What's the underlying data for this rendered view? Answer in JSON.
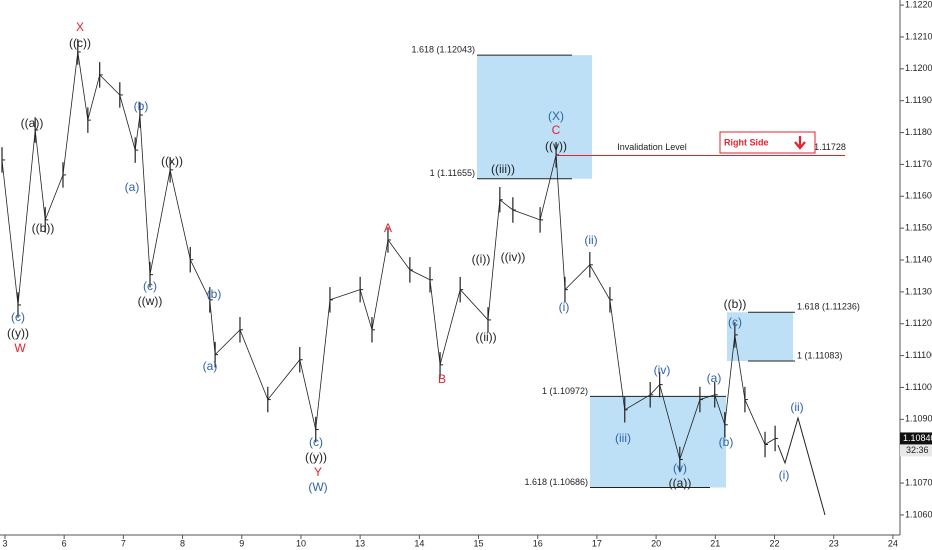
{
  "chart_data": {
    "type": "ohlc",
    "xlim": [
      -0.084,
      15.12
    ],
    "xticks": [
      {
        "value": 0,
        "label": "3"
      },
      {
        "value": 1,
        "label": "6"
      },
      {
        "value": 2,
        "label": "7"
      },
      {
        "value": 3,
        "label": "8"
      },
      {
        "value": 4,
        "label": "9"
      },
      {
        "value": 5,
        "label": "10"
      },
      {
        "value": 6,
        "label": "13"
      },
      {
        "value": 7,
        "label": "14"
      },
      {
        "value": 8,
        "label": "15"
      },
      {
        "value": 9,
        "label": "16"
      },
      {
        "value": 10,
        "label": "17"
      },
      {
        "value": 11,
        "label": "20"
      },
      {
        "value": 12,
        "label": "21"
      },
      {
        "value": 13,
        "label": "22"
      },
      {
        "value": 14,
        "label": "23"
      },
      {
        "value": 15,
        "label": "24"
      }
    ],
    "ylim": [
      1.10537,
      1.12216
    ],
    "yticks": [
      {
        "value": 1.106,
        "label": "1.10600"
      },
      {
        "value": 1.107,
        "label": "1.10700"
      },
      {
        "value": 1.108,
        "label": "1.10800"
      },
      {
        "value": 1.109,
        "label": "1.10900"
      },
      {
        "value": 1.11,
        "label": "1.11000"
      },
      {
        "value": 1.111,
        "label": "1.11100"
      },
      {
        "value": 1.112,
        "label": "1.11200"
      },
      {
        "value": 1.113,
        "label": "1.11300"
      },
      {
        "value": 1.114,
        "label": "1.11400"
      },
      {
        "value": 1.115,
        "label": "1.11500"
      },
      {
        "value": 1.116,
        "label": "1.11600"
      },
      {
        "value": 1.117,
        "label": "1.11700"
      },
      {
        "value": 1.118,
        "label": "1.11800"
      },
      {
        "value": 1.119,
        "label": "1.11900"
      },
      {
        "value": 1.12,
        "label": "1.12000"
      },
      {
        "value": 1.121,
        "label": "1.12100"
      },
      {
        "value": 1.122,
        "label": "1.12200"
      }
    ],
    "color": "#222222",
    "x": [
      -0.05,
      0.22,
      0.51,
      0.68,
      0.98,
      1.23,
      1.4,
      1.6,
      1.94,
      2.2,
      2.28,
      2.45,
      2.79,
      3.13,
      3.46,
      3.55,
      3.97,
      4.44,
      4.98,
      5.25,
      5.49,
      6,
      6.2,
      6.47,
      6.84,
      7.18,
      7.35,
      7.69,
      8.16,
      8.36,
      8.58,
      9.04,
      9.31,
      9.46,
      9.88,
      10.22,
      10.47,
      10.9,
      11.06,
      11.4,
      11.74,
      11.99,
      12.16,
      12.33,
      12.5,
      12.84,
      13.01
    ],
    "high": [
      1.11754,
      1.11299,
      1.11848,
      1.11566,
      1.11707,
      1.12093,
      1.11879,
      1.12021,
      1.11958,
      1.11785,
      1.11895,
      1.11394,
      1.11723,
      1.11441,
      1.11315,
      1.11143,
      1.11221,
      1.11002,
      1.11127,
      1.10908,
      1.11315,
      1.11347,
      1.11221,
      1.11503,
      1.11409,
      1.11378,
      1.11111,
      1.11347,
      1.11252,
      1.11629,
      1.11597,
      1.11566,
      1.1177,
      1.11347,
      1.11425,
      1.11315,
      1.1097,
      1.11017,
      1.11049,
      1.10814,
      1.11002,
      1.11017,
      1.10923,
      1.11205,
      1.11002,
      1.10861,
      1.1088
    ],
    "low": [
      1.11674,
      1.11219,
      1.11768,
      1.11486,
      1.11627,
      1.12013,
      1.11799,
      1.11941,
      1.11878,
      1.11705,
      1.11815,
      1.11314,
      1.11643,
      1.11361,
      1.11235,
      1.11063,
      1.11141,
      1.10922,
      1.11047,
      1.10828,
      1.11235,
      1.11267,
      1.11141,
      1.11423,
      1.11329,
      1.11298,
      1.11031,
      1.11267,
      1.11172,
      1.11549,
      1.11517,
      1.11486,
      1.1169,
      1.11267,
      1.11345,
      1.11235,
      1.1089,
      1.10937,
      1.10969,
      1.10734,
      1.10922,
      1.10937,
      1.10843,
      1.11125,
      1.10922,
      1.10781,
      1.108
    ],
    "close": [
      1.11714,
      1.11259,
      1.11808,
      1.11526,
      1.11667,
      1.12053,
      1.11839,
      1.11981,
      1.11918,
      1.11745,
      1.11855,
      1.11354,
      1.11683,
      1.11401,
      1.11275,
      1.11103,
      1.11181,
      1.10962,
      1.11087,
      1.10868,
      1.11275,
      1.11307,
      1.11181,
      1.11463,
      1.11369,
      1.11338,
      1.11071,
      1.11307,
      1.11212,
      1.11589,
      1.11557,
      1.11526,
      1.1173,
      1.11307,
      1.11385,
      1.11275,
      1.1093,
      1.10977,
      1.11009,
      1.10774,
      1.10962,
      1.10977,
      1.10883,
      1.11165,
      1.10962,
      1.10821,
      1.1084
    ],
    "levels": [
      {
        "label": "1.618 (1.12043)",
        "value": 1.12043
      },
      {
        "label": "1 (1.11655)",
        "value": 1.11655
      },
      {
        "label": "1 (1.10972)",
        "value": 1.10972
      },
      {
        "label": "1.618 (1.10686)",
        "value": 1.10686
      },
      {
        "label": "1.618 (1.11236)",
        "value": 1.11236
      },
      {
        "label": "1 (1.11083)",
        "value": 1.11083
      }
    ],
    "box_color": "#bde0f7",
    "invalidation": {
      "label": "Invalidation Level",
      "value": 1.11728,
      "value_label": "1.11728",
      "color": "#e5222b"
    },
    "callout": "Right Side",
    "last_price": {
      "value": 1.1084,
      "label": "1.10840"
    },
    "countdown": "32:36",
    "annotations": [
      {
        "text": "X",
        "color": "#e5222b"
      },
      {
        "text": "((c))",
        "color": "#222222"
      },
      {
        "text": "((a))",
        "color": "#222222"
      },
      {
        "text": "((b))",
        "color": "#222222"
      },
      {
        "text": "(c)",
        "color": "#2f64a8"
      },
      {
        "text": "((y))",
        "color": "#222222"
      },
      {
        "text": "W",
        "color": "#e5222b"
      },
      {
        "text": "(b)",
        "color": "#2f64a8"
      },
      {
        "text": "(a)",
        "color": "#2f64a8"
      },
      {
        "text": "((x))",
        "color": "#222222"
      },
      {
        "text": "(c)",
        "color": "#2f64a8"
      },
      {
        "text": "((w))",
        "color": "#222222"
      },
      {
        "text": "(b)",
        "color": "#2f64a8"
      },
      {
        "text": "(a)",
        "color": "#2f64a8"
      },
      {
        "text": "(c)",
        "color": "#2f64a8"
      },
      {
        "text": "((y))",
        "color": "#222222"
      },
      {
        "text": "Y",
        "color": "#e5222b"
      },
      {
        "text": "(W)",
        "color": "#2f64a8"
      },
      {
        "text": "A",
        "color": "#e5222b"
      },
      {
        "text": "B",
        "color": "#e5222b"
      },
      {
        "text": "((i))",
        "color": "#222222"
      },
      {
        "text": "((ii))",
        "color": "#222222"
      },
      {
        "text": "((iii))",
        "color": "#222222"
      },
      {
        "text": "((iv))",
        "color": "#222222"
      },
      {
        "text": "(X)",
        "color": "#2f64a8"
      },
      {
        "text": "C",
        "color": "#e5222b"
      },
      {
        "text": "((v))",
        "color": "#222222"
      },
      {
        "text": "(i)",
        "color": "#2f64a8"
      },
      {
        "text": "(ii)",
        "color": "#2f64a8"
      },
      {
        "text": "(iii)",
        "color": "#2f64a8"
      },
      {
        "text": "(iv)",
        "color": "#2f64a8"
      },
      {
        "text": "(v)",
        "color": "#2f64a8"
      },
      {
        "text": "((a))",
        "color": "#222222"
      },
      {
        "text": "(a)",
        "color": "#2f64a8"
      },
      {
        "text": "(b)",
        "color": "#2f64a8"
      },
      {
        "text": "(c)",
        "color": "#2f64a8"
      },
      {
        "text": "((b))",
        "color": "#222222"
      },
      {
        "text": "(i)",
        "color": "#2f64a8"
      },
      {
        "text": "(ii)",
        "color": "#2f64a8"
      }
    ]
  }
}
